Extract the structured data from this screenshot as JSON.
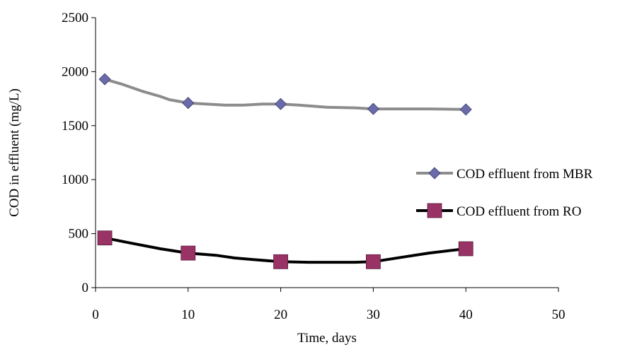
{
  "chart_data": {
    "type": "line",
    "title": "",
    "xlabel": "Time, days",
    "ylabel": "COD in effluent (mg/L)",
    "xlim": [
      0,
      50
    ],
    "ylim": [
      0,
      2500
    ],
    "x_ticks": [
      "0",
      "10",
      "20",
      "30",
      "40",
      "50"
    ],
    "y_ticks": [
      "0",
      "500",
      "1000",
      "1500",
      "2000",
      "2500"
    ],
    "grid": false,
    "legend_position": "right",
    "series": [
      {
        "name": "COD effluent from MBR",
        "color": "#8c8c8c",
        "marker": "diamond",
        "marker_color": "#6b6bab",
        "x": [
          1,
          3,
          5,
          7,
          8,
          10,
          12,
          14,
          16,
          18,
          20,
          22,
          25,
          28,
          30,
          33,
          36,
          40
        ],
        "y": [
          1930,
          1880,
          1820,
          1770,
          1740,
          1710,
          1700,
          1690,
          1690,
          1700,
          1700,
          1690,
          1670,
          1665,
          1655,
          1655,
          1655,
          1650
        ],
        "marked_x": [
          1,
          10,
          20,
          30,
          40
        ],
        "marked_y": [
          1930,
          1710,
          1700,
          1655,
          1650
        ]
      },
      {
        "name": "COD effluent from RO",
        "color": "#000000",
        "marker": "square",
        "marker_color": "#993366",
        "x": [
          1,
          4,
          7,
          10,
          13,
          15,
          17,
          20,
          23,
          26,
          28,
          30,
          33,
          36,
          38,
          40
        ],
        "y": [
          460,
          410,
          360,
          320,
          300,
          275,
          260,
          240,
          235,
          235,
          235,
          240,
          280,
          320,
          340,
          360
        ],
        "marked_x": [
          1,
          10,
          20,
          30,
          40
        ],
        "marked_y": [
          460,
          320,
          240,
          240,
          360
        ]
      }
    ]
  }
}
